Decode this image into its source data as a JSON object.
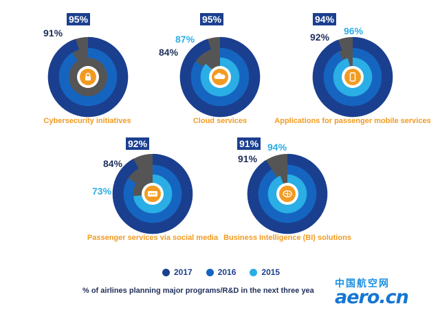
{
  "chart_data": {
    "type": "donut-group",
    "years": [
      "2017",
      "2016",
      "2015"
    ],
    "colors": {
      "2017": "#1b3f8f",
      "2016": "#1565c0",
      "2015": "#2aaee5",
      "gap": "#555555",
      "center": "#cfcfcf",
      "accent": "#f29b22"
    },
    "charts": [
      {
        "label": "Cybersecurity initiatives",
        "icon": "lock-icon",
        "v2017": "95%",
        "v2016": "91%",
        "v2015": "",
        "values": {
          "2017": 95,
          "2016": 91
        }
      },
      {
        "label": "Cloud services",
        "icon": "cloud-icon",
        "v2017": "95%",
        "v2016": "84%",
        "v2015": "87%",
        "values": {
          "2017": 95,
          "2016": 84,
          "2015": 87
        }
      },
      {
        "label": "Applications for passenger mobile services",
        "icon": "phone-icon",
        "v2017": "94%",
        "v2016": "92%",
        "v2015": "96%",
        "values": {
          "2017": 94,
          "2016": 92,
          "2015": 96
        }
      },
      {
        "label": "Passenger services via social media",
        "icon": "speech-bubble-icon",
        "v2017": "92%",
        "v2016": "84%",
        "v2015": "73%",
        "values": {
          "2017": 92,
          "2016": 84,
          "2015": 73
        }
      },
      {
        "label": "Business Intelligence (BI) solutions",
        "icon": "brain-icon",
        "v2017": "91%",
        "v2016": "91%",
        "v2015": "94%",
        "values": {
          "2017": 91,
          "2016": 91,
          "2015": 94
        }
      }
    ]
  },
  "legend": {
    "y2017": "2017",
    "y2016": "2016",
    "y2015": "2015"
  },
  "caption": "% of airlines planning major programs/R&D in the next three yea",
  "watermark": {
    "cn": "中国航空网",
    "en": "aero.cn"
  }
}
